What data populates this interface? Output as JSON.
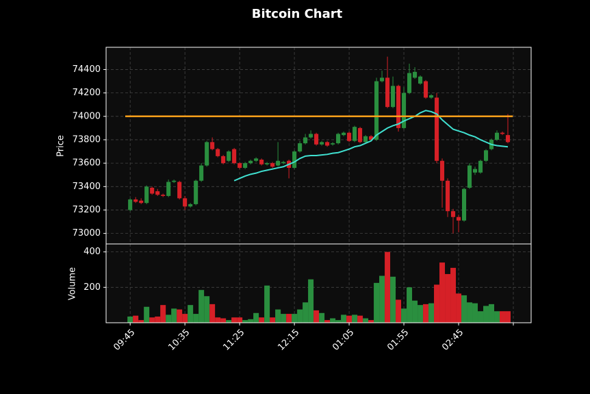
{
  "chart_data": {
    "type": "candlestick",
    "title": "Bitcoin Chart",
    "ylabel": "Price",
    "volume_ylabel": "Volume",
    "open": [
      73200,
      73290,
      73280,
      73260,
      73390,
      73360,
      73330,
      73320,
      73440,
      73440,
      73300,
      73230,
      73250,
      73450,
      73580,
      73780,
      73720,
      73660,
      73620,
      73720,
      73600,
      73560,
      73600,
      73620,
      73630,
      73590,
      73600,
      73580,
      73600,
      73620,
      73560,
      73700,
      73770,
      73820,
      73850,
      73760,
      73780,
      73760,
      73770,
      73840,
      73860,
      73790,
      73900,
      73780,
      73830,
      73800,
      74300,
      74330,
      74080,
      74260,
      73900,
      74200,
      74330,
      74280,
      74300,
      74160,
      74160,
      73620,
      73450,
      73190,
      73140,
      73110,
      73390,
      73520,
      73520,
      73620,
      73720,
      73800,
      73860,
      73840
    ],
    "high": [
      73300,
      73310,
      73300,
      73410,
      73400,
      73380,
      73340,
      73460,
      73460,
      73450,
      73320,
      73260,
      73460,
      73600,
      73790,
      73820,
      73730,
      73670,
      73710,
      73730,
      73610,
      73610,
      73630,
      73650,
      73640,
      73610,
      73610,
      73780,
      73620,
      73630,
      73710,
      73790,
      73850,
      73880,
      73860,
      73790,
      73790,
      73780,
      73860,
      73870,
      73870,
      73920,
      73910,
      73840,
      73840,
      74330,
      74390,
      74510,
      74340,
      74270,
      74250,
      74450,
      74420,
      74350,
      74310,
      74190,
      74200,
      73640,
      73470,
      73210,
      73160,
      73390,
      73600,
      73570,
      73630,
      73720,
      73810,
      73880,
      73870,
      74020
    ],
    "low": [
      73190,
      73260,
      73250,
      73250,
      73330,
      73320,
      73310,
      73310,
      73430,
      73290,
      73200,
      73220,
      73240,
      73440,
      73570,
      73710,
      73650,
      73590,
      73610,
      73590,
      73550,
      73550,
      73590,
      73610,
      73580,
      73580,
      73560,
      73570,
      73590,
      73470,
      73550,
      73690,
      73760,
      73810,
      73750,
      73750,
      73740,
      73750,
      73760,
      73830,
      73780,
      73780,
      73770,
      73770,
      73790,
      73790,
      74290,
      74070,
      74070,
      73870,
      73890,
      74190,
      74320,
      74270,
      74150,
      74150,
      73600,
      73220,
      73140,
      73000,
      73010,
      73100,
      73380,
      73500,
      73510,
      73610,
      73710,
      73790,
      73840,
      73770
    ],
    "close": [
      73290,
      73270,
      73260,
      73400,
      73340,
      73330,
      73320,
      73440,
      73450,
      73300,
      73230,
      73250,
      73450,
      73580,
      73780,
      73720,
      73660,
      73600,
      73700,
      73600,
      73560,
      73600,
      73620,
      73640,
      73590,
      73600,
      73570,
      73620,
      73610,
      73560,
      73700,
      73770,
      73820,
      73850,
      73760,
      73780,
      73750,
      73770,
      73850,
      73860,
      73790,
      73910,
      73780,
      73830,
      73800,
      74300,
      74330,
      74080,
      74260,
      73900,
      74200,
      74370,
      74380,
      74340,
      74160,
      74180,
      73620,
      73450,
      73190,
      73140,
      73110,
      73380,
      73580,
      73550,
      73620,
      73710,
      73800,
      73860,
      73850,
      73780
    ],
    "volume": [
      35,
      40,
      15,
      90,
      30,
      35,
      100,
      45,
      80,
      75,
      50,
      100,
      50,
      185,
      150,
      105,
      30,
      25,
      15,
      30,
      30,
      15,
      20,
      55,
      30,
      210,
      30,
      75,
      50,
      50,
      50,
      75,
      115,
      245,
      70,
      55,
      15,
      25,
      15,
      45,
      40,
      45,
      40,
      25,
      15,
      225,
      265,
      400,
      260,
      130,
      80,
      200,
      125,
      100,
      105,
      110,
      215,
      340,
      275,
      310,
      165,
      155,
      115,
      110,
      65,
      95,
      105,
      65,
      65,
      65
    ],
    "ma": [
      null,
      null,
      null,
      null,
      null,
      null,
      null,
      null,
      null,
      null,
      null,
      null,
      null,
      null,
      null,
      null,
      null,
      null,
      null,
      73450,
      73470,
      73490,
      73505,
      73515,
      73530,
      73540,
      73550,
      73560,
      73570,
      73590,
      73610,
      73640,
      73660,
      73665,
      73665,
      73670,
      73675,
      73685,
      73690,
      73705,
      73720,
      73740,
      73750,
      73770,
      73790,
      73840,
      73870,
      73900,
      73920,
      73935,
      73960,
      73980,
      74000,
      74030,
      74050,
      74040,
      74020,
      73970,
      73930,
      73890,
      73875,
      73860,
      73840,
      73825,
      73800,
      73780,
      73760,
      73750,
      73745,
      73740
    ],
    "hline": 74000,
    "up_color": "#2a8f3f",
    "down_color": "#d62027",
    "ma_color": "#40e0d0",
    "hline_color": "#ff9f1a",
    "xlim": [
      -4.4,
      73.25
    ],
    "xticks": [
      {
        "value": 0,
        "label": "09:45"
      },
      {
        "value": 10,
        "label": "10:35"
      },
      {
        "value": 20,
        "label": "11:25"
      },
      {
        "value": 30,
        "label": "12:15"
      },
      {
        "value": 40,
        "label": "01:05"
      },
      {
        "value": 50,
        "label": "01:55"
      },
      {
        "value": 60,
        "label": "02:45"
      },
      {
        "value": 70,
        "label": null
      }
    ],
    "ylim": [
      72910,
      74590
    ],
    "yticks": [
      73000,
      73200,
      73400,
      73600,
      73800,
      74000,
      74200,
      74400
    ],
    "volume_ylim": [
      0,
      445
    ],
    "volume_yticks": [
      200,
      400
    ],
    "grid": true
  }
}
